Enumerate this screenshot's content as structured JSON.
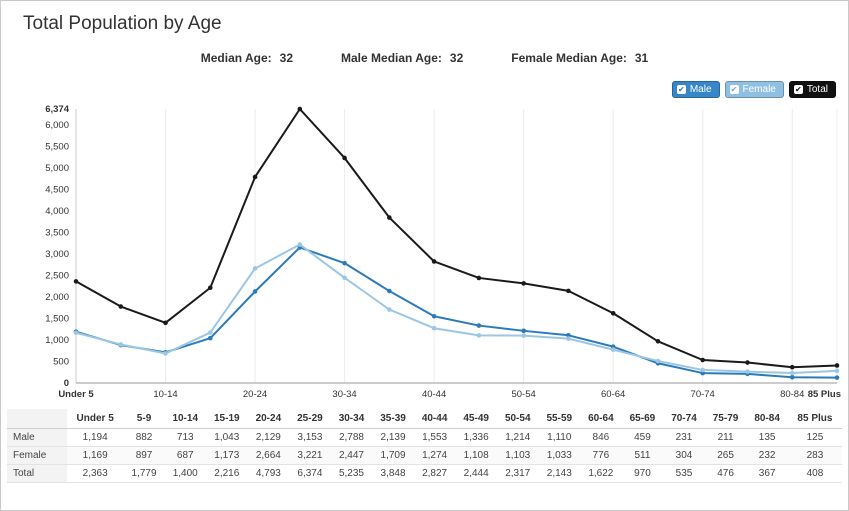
{
  "page": {
    "title": "Total Population by Age"
  },
  "stats": [
    {
      "label": "Median Age:",
      "value": "32"
    },
    {
      "label": "Male Median Age:",
      "value": "32"
    },
    {
      "label": "Female Median Age:",
      "value": "31"
    }
  ],
  "legend": [
    {
      "label": "Male",
      "color": "#3787c8",
      "check_color": "#2d7ab9"
    },
    {
      "label": "Female",
      "color": "#8fc0e2",
      "check_color": "#6fa8cf"
    },
    {
      "label": "Total",
      "color": "#111111",
      "check_color": "#111111"
    }
  ],
  "chart_data": {
    "type": "line",
    "title": "Total Population by Age",
    "categories": [
      "Under 5",
      "5-9",
      "10-14",
      "15-19",
      "20-24",
      "25-29",
      "30-34",
      "35-39",
      "40-44",
      "45-49",
      "50-54",
      "55-59",
      "60-64",
      "65-69",
      "70-74",
      "75-79",
      "80-84",
      "85 Plus"
    ],
    "x_tick_indexes": [
      0,
      2,
      4,
      6,
      8,
      10,
      12,
      14,
      16,
      17
    ],
    "series": [
      {
        "name": "Male",
        "color": "#2d7ab9",
        "values": [
          1194,
          882,
          713,
          1043,
          2129,
          3153,
          2788,
          2139,
          1553,
          1336,
          1214,
          1110,
          846,
          459,
          231,
          211,
          135,
          125
        ]
      },
      {
        "name": "Female",
        "color": "#9bc7e4",
        "values": [
          1169,
          897,
          687,
          1173,
          2664,
          3221,
          2447,
          1709,
          1274,
          1108,
          1103,
          1033,
          776,
          511,
          304,
          265,
          232,
          283
        ]
      },
      {
        "name": "Total",
        "color": "#1a1a1a",
        "values": [
          2363,
          1779,
          1400,
          2216,
          4793,
          6374,
          5235,
          3848,
          2827,
          2444,
          2317,
          2143,
          1622,
          970,
          535,
          476,
          367,
          408
        ]
      }
    ],
    "ylim": [
      0,
      6374
    ],
    "y_ticks": [
      0,
      500,
      1000,
      1500,
      2000,
      2500,
      3000,
      3500,
      4000,
      4500,
      5000,
      5500,
      6000,
      6374
    ],
    "grid": "vertical-light",
    "legend_position": "top-right",
    "xlabel": "",
    "ylabel": ""
  },
  "table": {
    "corner": "",
    "columns": [
      "Under 5",
      "5-9",
      "10-14",
      "15-19",
      "20-24",
      "25-29",
      "30-34",
      "35-39",
      "40-44",
      "45-49",
      "50-54",
      "55-59",
      "60-64",
      "65-69",
      "70-74",
      "75-79",
      "80-84",
      "85 Plus"
    ],
    "rows": [
      {
        "label": "Male",
        "values": [
          1194,
          882,
          713,
          1043,
          2129,
          3153,
          2788,
          2139,
          1553,
          1336,
          1214,
          1110,
          846,
          459,
          231,
          211,
          135,
          125
        ]
      },
      {
        "label": "Female",
        "values": [
          1169,
          897,
          687,
          1173,
          2664,
          3221,
          2447,
          1709,
          1274,
          1108,
          1103,
          1033,
          776,
          511,
          304,
          265,
          232,
          283
        ]
      },
      {
        "label": "Total",
        "values": [
          2363,
          1779,
          1400,
          2216,
          4793,
          6374,
          5235,
          3848,
          2827,
          2444,
          2317,
          2143,
          1622,
          970,
          535,
          476,
          367,
          408
        ]
      }
    ]
  }
}
